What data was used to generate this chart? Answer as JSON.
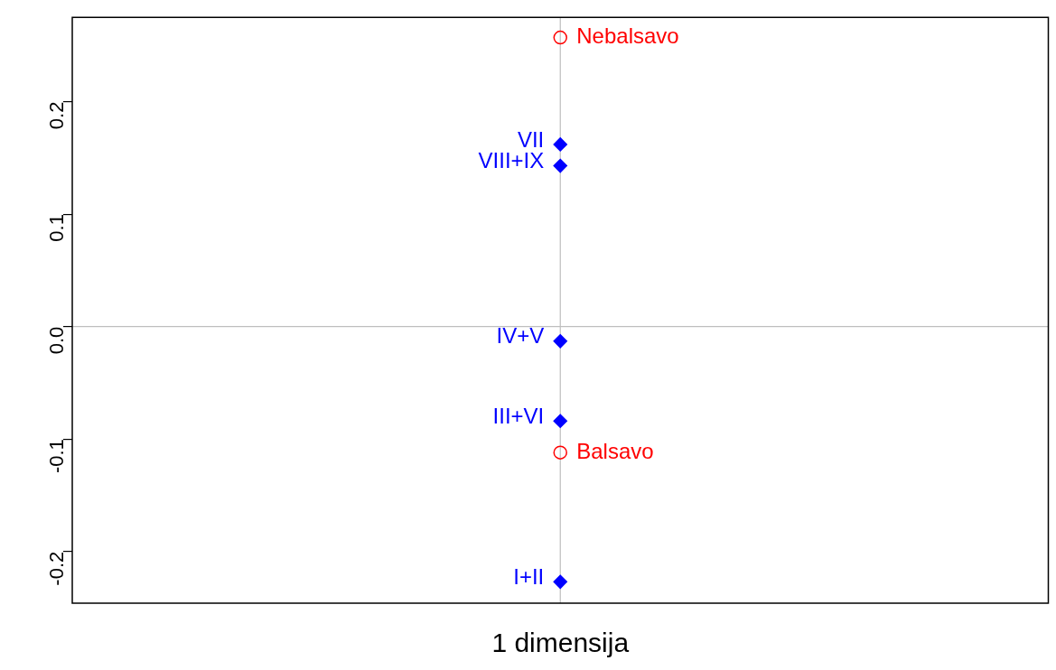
{
  "chart_data": {
    "type": "scatter",
    "xlabel": "1 dimensija",
    "categories": [
      null
    ],
    "series": [
      {
        "name": "VII",
        "color": "#0000ff",
        "marker": "diamond",
        "values": [
          0.162
        ]
      },
      {
        "name": "VIII+IX",
        "color": "#0000ff",
        "marker": "diamond",
        "values": [
          0.143
        ]
      },
      {
        "name": "IV+V",
        "color": "#0000ff",
        "marker": "diamond",
        "values": [
          -0.013
        ]
      },
      {
        "name": "III+VI",
        "color": "#0000ff",
        "marker": "diamond",
        "values": [
          -0.084
        ]
      },
      {
        "name": "I+II",
        "color": "#0000ff",
        "marker": "diamond",
        "values": [
          -0.227
        ]
      },
      {
        "name": "Nebalsavo",
        "color": "#ff0000",
        "marker": "circle",
        "values": [
          0.257
        ]
      },
      {
        "name": "Balsavo",
        "color": "#ff0000",
        "marker": "circle",
        "values": [
          -0.112
        ]
      }
    ],
    "ylim": [
      -0.246,
      0.275
    ],
    "yticks": [
      -0.2,
      -0.1,
      {
        "value": 0,
        "label": "0.0"
      },
      0.1,
      0.2
    ],
    "ref_lines": [
      {
        "axis": "y",
        "value": 0,
        "color": "#bebebe"
      },
      {
        "axis": "x",
        "value": null,
        "color": "#bebebe"
      }
    ],
    "tick_labels": "y",
    "legend": false
  }
}
